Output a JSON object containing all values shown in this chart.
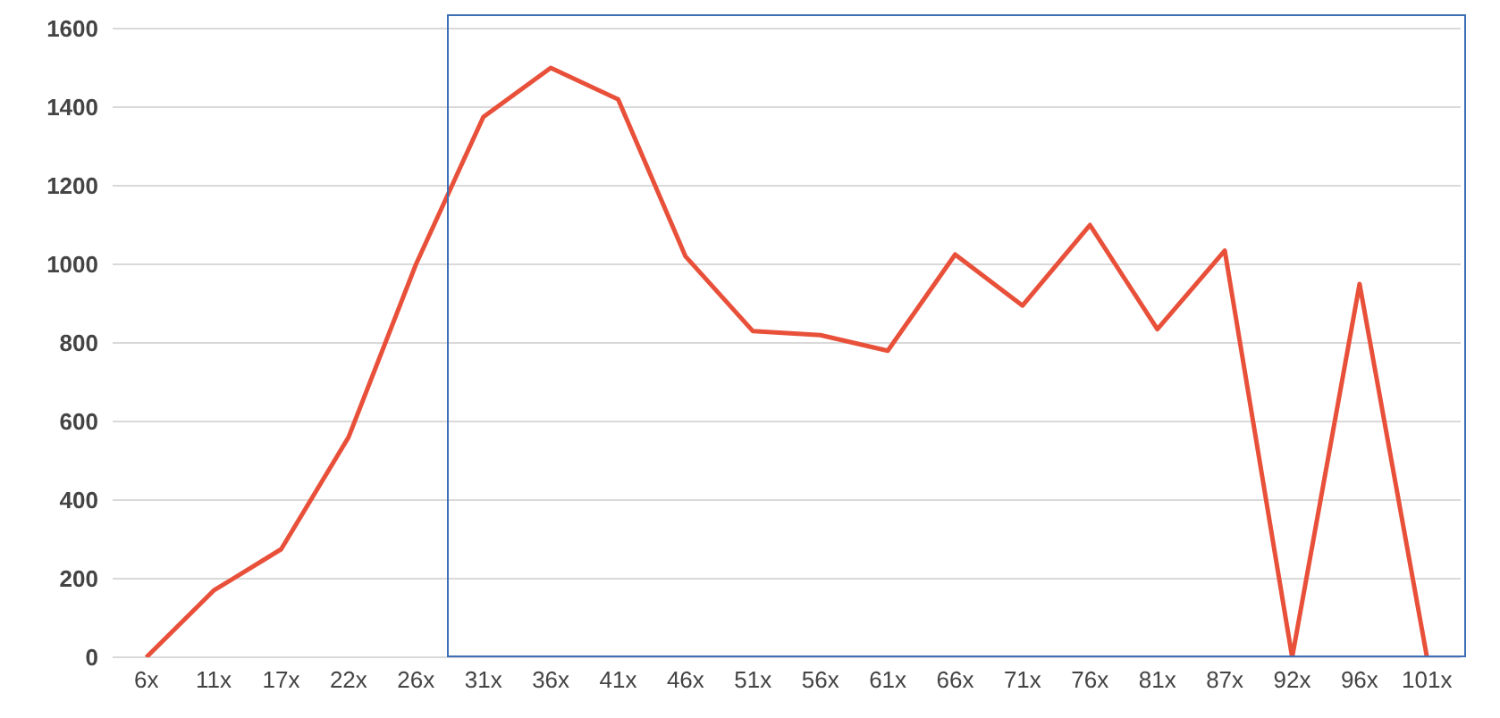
{
  "chart_data": {
    "type": "line",
    "categories": [
      "6x",
      "11x",
      "17x",
      "22x",
      "26x",
      "31x",
      "36x",
      "41x",
      "46x",
      "51x",
      "56x",
      "61x",
      "66x",
      "71x",
      "76x",
      "81x",
      "87x",
      "92x",
      "96x",
      "101x"
    ],
    "values": [
      0,
      170,
      275,
      560,
      1000,
      1375,
      1500,
      1420,
      1020,
      830,
      820,
      780,
      1025,
      895,
      1100,
      835,
      1035,
      0,
      950,
      0
    ],
    "color": "#e8503a",
    "ylim": [
      0,
      1600
    ],
    "yticks": [
      0,
      200,
      400,
      600,
      800,
      1000,
      1200,
      1400,
      1600
    ],
    "grid": "y",
    "marker": "none",
    "line_style": "solid"
  }
}
